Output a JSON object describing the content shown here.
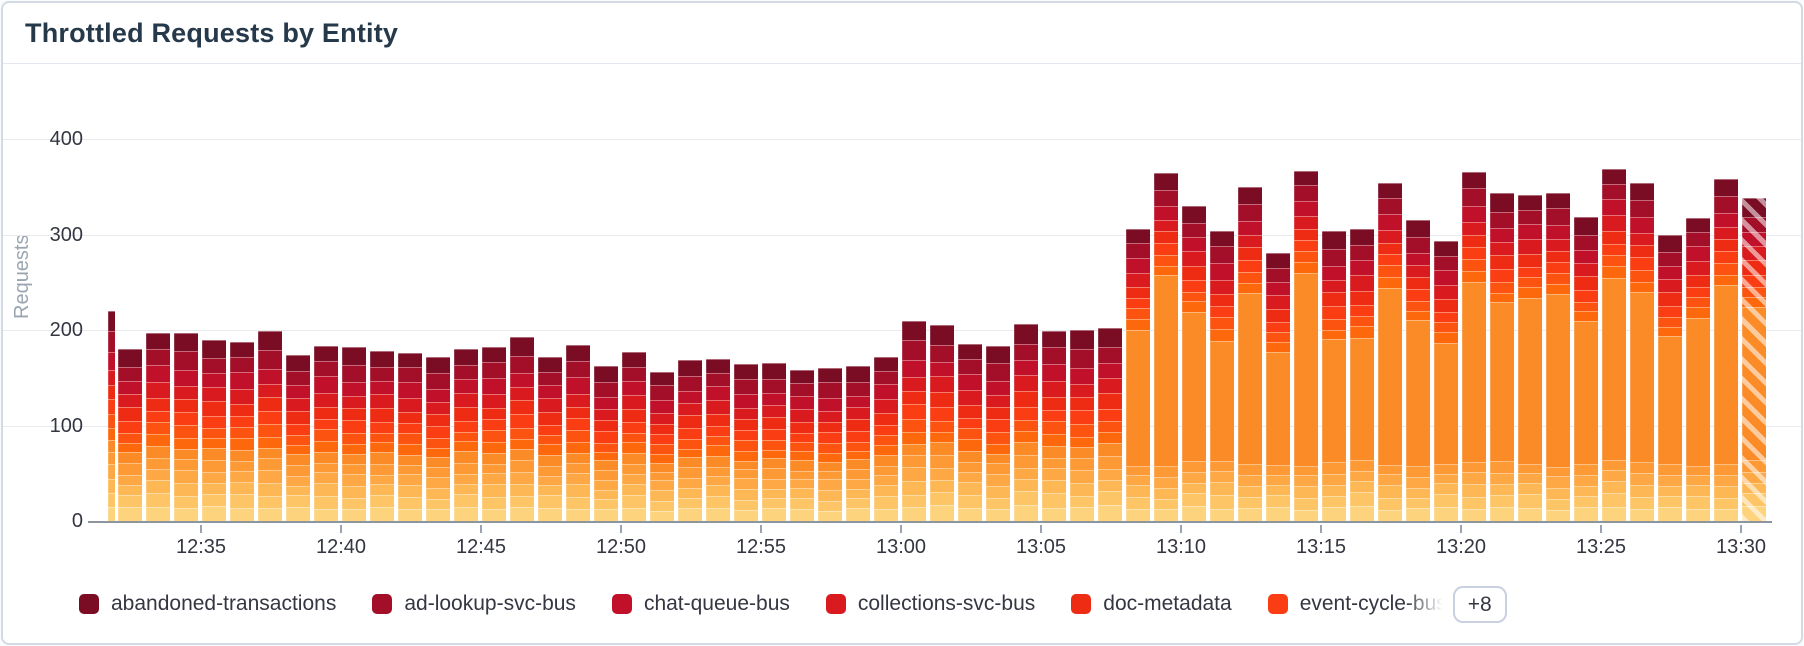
{
  "panel": {
    "title": "Throttled Requests by Entity"
  },
  "chart_data": {
    "type": "bar",
    "stacked": true,
    "title": "Throttled Requests by Entity",
    "xlabel": "",
    "ylabel": "Requests",
    "ylim": [
      0,
      400
    ],
    "yticks": [
      0,
      100,
      200,
      300,
      400
    ],
    "grid": true,
    "legend_position": "bottom",
    "bucket_interval": "1m",
    "xticks": [
      {
        "label": "12:35",
        "bucket_index": 4
      },
      {
        "label": "12:40",
        "bucket_index": 9
      },
      {
        "label": "12:45",
        "bucket_index": 14
      },
      {
        "label": "12:50",
        "bucket_index": 19
      },
      {
        "label": "12:55",
        "bucket_index": 24
      },
      {
        "label": "13:00",
        "bucket_index": 29
      },
      {
        "label": "13:05",
        "bucket_index": 34
      },
      {
        "label": "13:10",
        "bucket_index": 39
      },
      {
        "label": "13:15",
        "bucket_index": 44
      },
      {
        "label": "13:20",
        "bucket_index": 49
      },
      {
        "label": "13:25",
        "bucket_index": 54
      },
      {
        "label": "13:30",
        "bucket_index": 59
      }
    ],
    "legend": {
      "visible_entries": [
        {
          "label": "abandoned-transactions",
          "color": "#7a0c23"
        },
        {
          "label": "ad-lookup-svc-bus",
          "color": "#a30e29"
        },
        {
          "label": "chat-queue-bus",
          "color": "#c1112a"
        },
        {
          "label": "collections-svc-bus",
          "color": "#d91a1f"
        },
        {
          "label": "doc-metadata",
          "color": "#ee2c14"
        },
        {
          "label": "event-cycle-bus",
          "color": "#fa3d12",
          "truncated": true
        }
      ],
      "overflow_badge": "+8",
      "hidden_series_count": 8
    },
    "series_colors_top_to_bottom": [
      "#7a0c23",
      "#a30e29",
      "#c1112a",
      "#d91a1f",
      "#ee2c14",
      "#fa3d12",
      "#fc5410",
      "#fd680d",
      "#fb8b26",
      "#fd9a35",
      "#fda844",
      "#fdb754",
      "#fdc566",
      "#fed37e"
    ],
    "series_count": 14,
    "spike_series_index": 8,
    "spike_threshold_total": 260,
    "spike_base_other_total": 170,
    "series_weights_top_to_bottom": [
      1.35,
      1.3,
      1.2,
      1.12,
      1.05,
      0.95,
      0.9,
      0.85,
      0.9,
      0.86,
      0.9,
      0.95,
      1.0,
      1.07
    ],
    "buckets": [
      {
        "t": "12:31",
        "total": 220,
        "clipped": true
      },
      {
        "t": "12:32",
        "total": 180
      },
      {
        "t": "12:33",
        "total": 197
      },
      {
        "t": "12:34",
        "total": 197
      },
      {
        "t": "12:35",
        "total": 190
      },
      {
        "t": "12:36",
        "total": 188
      },
      {
        "t": "12:37",
        "total": 199
      },
      {
        "t": "12:38",
        "total": 174
      },
      {
        "t": "12:39",
        "total": 183
      },
      {
        "t": "12:40",
        "total": 182
      },
      {
        "t": "12:41",
        "total": 178
      },
      {
        "t": "12:42",
        "total": 176
      },
      {
        "t": "12:43",
        "total": 172
      },
      {
        "t": "12:44",
        "total": 180
      },
      {
        "t": "12:45",
        "total": 182
      },
      {
        "t": "12:46",
        "total": 193
      },
      {
        "t": "12:47",
        "total": 172
      },
      {
        "t": "12:48",
        "total": 184
      },
      {
        "t": "12:49",
        "total": 162
      },
      {
        "t": "12:50",
        "total": 177
      },
      {
        "t": "12:51",
        "total": 156
      },
      {
        "t": "12:52",
        "total": 169
      },
      {
        "t": "12:53",
        "total": 170
      },
      {
        "t": "12:54",
        "total": 164
      },
      {
        "t": "12:55",
        "total": 166
      },
      {
        "t": "12:56",
        "total": 158
      },
      {
        "t": "12:57",
        "total": 160
      },
      {
        "t": "12:58",
        "total": 162
      },
      {
        "t": "12:59",
        "total": 172
      },
      {
        "t": "13:00",
        "total": 210
      },
      {
        "t": "13:01",
        "total": 205
      },
      {
        "t": "13:02",
        "total": 185
      },
      {
        "t": "13:03",
        "total": 183
      },
      {
        "t": "13:04",
        "total": 206
      },
      {
        "t": "13:05",
        "total": 199
      },
      {
        "t": "13:06",
        "total": 200
      },
      {
        "t": "13:07",
        "total": 202
      },
      {
        "t": "13:08",
        "total": 306
      },
      {
        "t": "13:09",
        "total": 364
      },
      {
        "t": "13:10",
        "total": 330
      },
      {
        "t": "13:11",
        "total": 304
      },
      {
        "t": "13:12",
        "total": 350
      },
      {
        "t": "13:13",
        "total": 281
      },
      {
        "t": "13:14",
        "total": 367
      },
      {
        "t": "13:15",
        "total": 304
      },
      {
        "t": "13:16",
        "total": 306
      },
      {
        "t": "13:17",
        "total": 354
      },
      {
        "t": "13:18",
        "total": 315
      },
      {
        "t": "13:19",
        "total": 293
      },
      {
        "t": "13:20",
        "total": 365
      },
      {
        "t": "13:21",
        "total": 343
      },
      {
        "t": "13:22",
        "total": 341
      },
      {
        "t": "13:23",
        "total": 343
      },
      {
        "t": "13:24",
        "total": 318
      },
      {
        "t": "13:25",
        "total": 369
      },
      {
        "t": "13:26",
        "total": 354
      },
      {
        "t": "13:27",
        "total": 300
      },
      {
        "t": "13:28",
        "total": 317
      },
      {
        "t": "13:29",
        "total": 358
      },
      {
        "t": "13:30",
        "total": 338,
        "in_progress": true
      }
    ]
  },
  "colors": {
    "panel_border": "#d3dae6",
    "title_text": "#26394a",
    "axis_text": "#343741",
    "muted_text": "#9aa5b1",
    "grid_line": "#e8eaee",
    "axis_line": "#8e959e",
    "badge_border": "#c9d1e0"
  }
}
